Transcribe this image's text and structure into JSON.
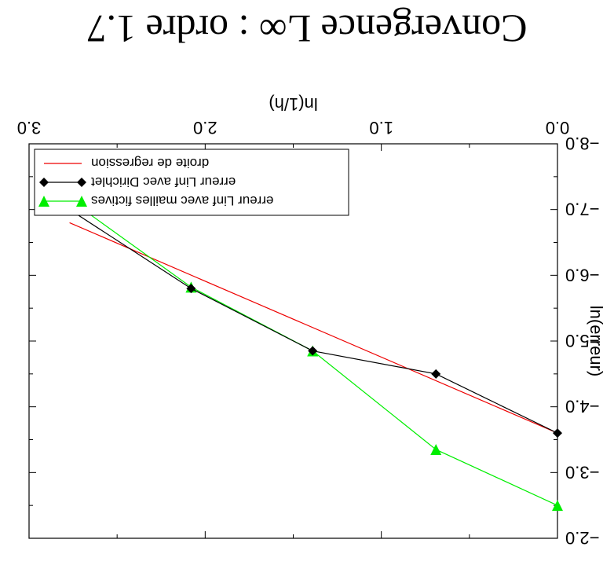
{
  "chart_data": {
    "type": "line",
    "title": "Convergence L∞ : ordre 1.7",
    "xlabel": "ln(1/h)",
    "ylabel": "ln(erreur)",
    "xlim": [
      0.0,
      3.0
    ],
    "ylim": [
      -8.0,
      -2.0
    ],
    "x_ticks": [
      {
        "value": 0.0,
        "label": "0.0"
      },
      {
        "value": 1.0,
        "label": "1.0"
      },
      {
        "value": 2.0,
        "label": "2.0"
      },
      {
        "value": 3.0,
        "label": "3.0"
      }
    ],
    "y_ticks": [
      {
        "value": -8.0,
        "label": "−8.0"
      },
      {
        "value": -7.0,
        "label": "−7.0"
      },
      {
        "value": -6.0,
        "label": "−6.0"
      },
      {
        "value": -5.0,
        "label": "−5.0"
      },
      {
        "value": -4.0,
        "label": "−4.0"
      },
      {
        "value": -3.0,
        "label": "−3.0"
      },
      {
        "value": -2.0,
        "label": "−2.0"
      }
    ],
    "orientation": "rotated 180 degrees",
    "legend_position": "bottom-right",
    "series": [
      {
        "name": "erreur Linf avec mailles fictives",
        "color": "#00ee00",
        "marker": "triangle-down",
        "x": [
          0.0,
          0.69,
          1.39,
          2.08,
          2.77
        ],
        "y": [
          -2.5,
          -3.35,
          -4.85,
          -5.82,
          -7.15
        ]
      },
      {
        "name": "erreur Linf avec Dirichlet",
        "color": "#000000",
        "marker": "diamond",
        "x": [
          0.0,
          0.69,
          1.39,
          2.08,
          2.77
        ],
        "y": [
          -3.6,
          -4.5,
          -4.85,
          -5.8,
          -7.0
        ]
      },
      {
        "name": "droite de regression",
        "color": "#ee0000",
        "marker": "none",
        "x": [
          0.0,
          2.77
        ],
        "y": [
          -3.6,
          -6.8
        ]
      }
    ]
  }
}
